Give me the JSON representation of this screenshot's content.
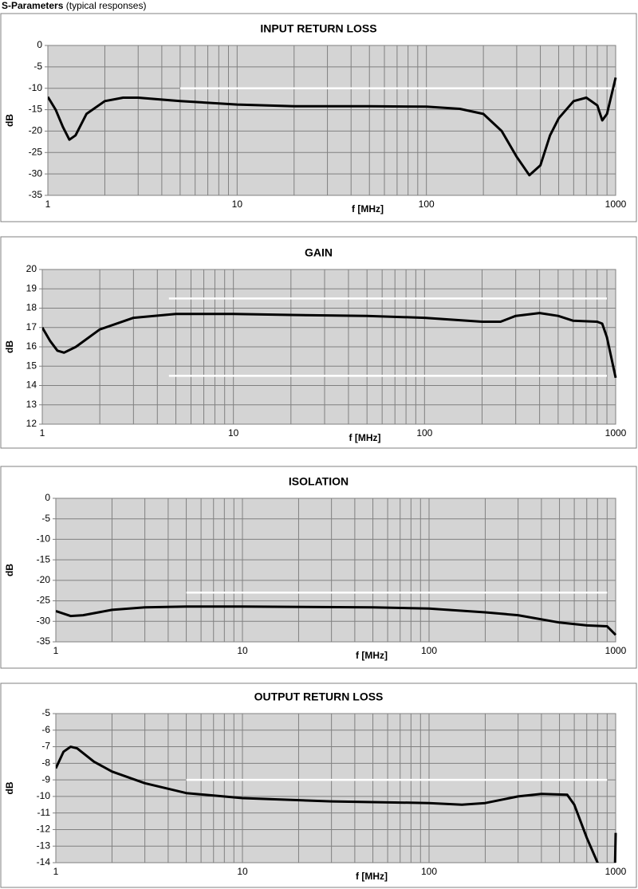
{
  "title": "S-Parameters",
  "subtitle": "(typical responses)",
  "chart_data": [
    {
      "type": "line",
      "title": "INPUT RETURN LOSS",
      "xlabel": "f [MHz]",
      "ylabel": "dB",
      "xscale": "log",
      "grid": true,
      "minor_grid": true,
      "legend": false,
      "xlim": [
        1,
        1000
      ],
      "xticks": [
        1,
        10,
        100,
        1000
      ],
      "ylim": [
        -35,
        0
      ],
      "yticks": [
        -35,
        -30,
        -25,
        -20,
        -15,
        -10,
        -5,
        0
      ],
      "series": [
        {
          "color": "#000000",
          "x": [
            1,
            1.1,
            1.2,
            1.3,
            1.4,
            1.6,
            2,
            2.5,
            3,
            5,
            10,
            20,
            50,
            100,
            150,
            200,
            250,
            300,
            350,
            400,
            450,
            500,
            600,
            700,
            800,
            850,
            900,
            1000
          ],
          "values": [
            -12,
            -15,
            -19,
            -22,
            -21,
            -16,
            -13,
            -12.2,
            -12.2,
            -13,
            -13.8,
            -14.2,
            -14.2,
            -14.3,
            -14.8,
            -16,
            -20,
            -26,
            -30.3,
            -28,
            -21,
            -17,
            -13,
            -12.2,
            -14,
            -17.5,
            -16,
            -7.5
          ]
        },
        {
          "color": "#ffffff",
          "x": [
            5,
            1000
          ],
          "values": [
            -10,
            -10
          ]
        }
      ]
    },
    {
      "type": "line",
      "title": "GAIN",
      "xlabel": "f [MHz]",
      "ylabel": "dB",
      "xscale": "log",
      "grid": true,
      "minor_grid": true,
      "legend": false,
      "xlim": [
        1,
        1000
      ],
      "xticks": [
        1,
        10,
        100,
        1000
      ],
      "ylim": [
        12,
        20
      ],
      "yticks": [
        12,
        13,
        14,
        15,
        16,
        17,
        18,
        19,
        20
      ],
      "series": [
        {
          "color": "#000000",
          "x": [
            1,
            1.1,
            1.2,
            1.3,
            1.5,
            2,
            3,
            5,
            10,
            20,
            50,
            100,
            200,
            250,
            300,
            400,
            500,
            600,
            800,
            850,
            900,
            1000
          ],
          "values": [
            17,
            16.3,
            15.8,
            15.7,
            16,
            16.9,
            17.5,
            17.7,
            17.7,
            17.65,
            17.6,
            17.5,
            17.3,
            17.3,
            17.6,
            17.75,
            17.6,
            17.35,
            17.3,
            17.2,
            16.5,
            14.4
          ]
        },
        {
          "color": "#ffffff",
          "x": [
            4.6,
            900
          ],
          "values": [
            18.5,
            18.5
          ]
        },
        {
          "color": "#ffffff",
          "x": [
            4.6,
            900
          ],
          "values": [
            14.5,
            14.5
          ]
        }
      ]
    },
    {
      "type": "line",
      "title": "ISOLATION",
      "xlabel": "f [MHz]",
      "ylabel": "dB",
      "xscale": "log",
      "grid": true,
      "minor_grid": true,
      "legend": false,
      "xlim": [
        1,
        1000
      ],
      "xticks": [
        1,
        10,
        100,
        1000
      ],
      "ylim": [
        -35,
        0
      ],
      "yticks": [
        -35,
        -30,
        -25,
        -20,
        -15,
        -10,
        -5,
        0
      ],
      "series": [
        {
          "color": "#000000",
          "x": [
            1,
            1.2,
            1.4,
            2,
            3,
            5,
            10,
            50,
            100,
            200,
            300,
            500,
            700,
            900,
            1000
          ],
          "values": [
            -27.5,
            -28.7,
            -28.5,
            -27.2,
            -26.6,
            -26.4,
            -26.4,
            -26.6,
            -26.9,
            -27.8,
            -28.5,
            -30.3,
            -31,
            -31.2,
            -33.3
          ]
        },
        {
          "color": "#ffffff",
          "x": [
            5,
            900
          ],
          "values": [
            -23,
            -23
          ]
        }
      ]
    },
    {
      "type": "line",
      "title": "OUTPUT RETURN LOSS",
      "xlabel": "f [MHz]",
      "ylabel": "dB",
      "xscale": "log",
      "grid": true,
      "minor_grid": true,
      "legend": false,
      "xlim": [
        1,
        1000
      ],
      "xticks": [
        1,
        10,
        100,
        1000
      ],
      "ylim": [
        -14,
        -5
      ],
      "yticks": [
        -14,
        -13,
        -12,
        -11,
        -10,
        -9,
        -8,
        -7,
        -6,
        -5
      ],
      "series": [
        {
          "color": "#000000",
          "x": [
            1,
            1.1,
            1.2,
            1.3,
            1.6,
            2,
            3,
            5,
            10,
            30,
            100,
            150,
            200,
            300,
            400,
            550,
            600,
            700,
            800,
            850,
            900,
            990,
            1000
          ],
          "values": [
            -8.3,
            -7.3,
            -7.0,
            -7.1,
            -7.9,
            -8.5,
            -9.2,
            -9.8,
            -10.1,
            -10.3,
            -10.4,
            -10.5,
            -10.4,
            -10.0,
            -9.85,
            -9.9,
            -10.5,
            -12.5,
            -14.0,
            -14.6,
            null,
            -14.6,
            -12.2
          ]
        },
        {
          "color": "#ffffff",
          "x": [
            5,
            900
          ],
          "values": [
            -9,
            -9
          ]
        }
      ]
    }
  ]
}
